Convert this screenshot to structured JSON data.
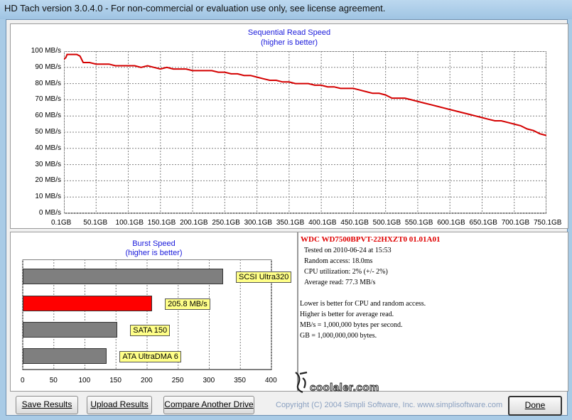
{
  "window": {
    "title": "HD Tach version 3.0.4.0  - For non-commercial or evaluation use only, see license agreement."
  },
  "colors": {
    "read_line": "#d40000",
    "grid": "#808080",
    "bar_highlight": "#ff0000",
    "bar_gray": "#7f7f7f",
    "chart_title": "#1a1adb"
  },
  "chart_data": [
    {
      "type": "line",
      "title": "Sequential Read Speed",
      "subtitle": "(higher is better)",
      "y_ticks": [
        "100 MB/s",
        "90 MB/s",
        "80 MB/s",
        "70 MB/s",
        "60 MB/s",
        "50 MB/s",
        "40 MB/s",
        "30 MB/s",
        "20 MB/s",
        "10 MB/s",
        "0 MB/s"
      ],
      "x_ticks": [
        "0.1GB",
        "50.1GB",
        "100.1GB",
        "150.1GB",
        "200.1GB",
        "250.1GB",
        "300.1GB",
        "350.1GB",
        "400.1GB",
        "450.1GB",
        "500.1GB",
        "550.1GB",
        "600.1GB",
        "650.1GB",
        "700.1GB",
        "750.1GB"
      ],
      "xlim": [
        0.1,
        750.1
      ],
      "ylim": [
        0,
        100
      ],
      "grid": true,
      "series": [
        {
          "x": [
            0.1,
            3,
            5,
            10,
            20,
            25,
            30,
            40,
            50,
            60,
            70,
            80,
            90,
            100,
            110,
            120,
            130,
            140,
            150,
            160,
            170,
            180,
            190,
            200,
            210,
            220,
            230,
            240,
            250,
            260,
            270,
            280,
            290,
            300,
            310,
            320,
            330,
            340,
            350,
            360,
            370,
            380,
            390,
            400,
            410,
            420,
            430,
            440,
            450,
            460,
            470,
            480,
            490,
            500,
            510,
            520,
            530,
            540,
            550,
            560,
            570,
            580,
            590,
            600,
            610,
            620,
            630,
            640,
            650,
            660,
            670,
            680,
            690,
            700,
            710,
            720,
            730,
            740,
            750.1
          ],
          "y": [
            95,
            96,
            98,
            98,
            98,
            97,
            93,
            93,
            92,
            92,
            92,
            91,
            91,
            91,
            91,
            90,
            91,
            90,
            89,
            90,
            89,
            89,
            89,
            88,
            88,
            88,
            88,
            87,
            87,
            86,
            86,
            85,
            85,
            84,
            83,
            82,
            82,
            81,
            81,
            80,
            80,
            80,
            79,
            79,
            78,
            78,
            77,
            77,
            77,
            76,
            75,
            74,
            74,
            73,
            71,
            71,
            71,
            70,
            69,
            68,
            67,
            66,
            65,
            64,
            63,
            62,
            61,
            60,
            59,
            58,
            57,
            57,
            56,
            55,
            54,
            52,
            51,
            49,
            48
          ]
        }
      ]
    },
    {
      "type": "bar",
      "title": "Burst Speed",
      "subtitle": "(higher is better)",
      "categories": [
        "SCSI Ultra320",
        "205.8 MB/s",
        "SATA 150",
        "ATA UltraDMA 6"
      ],
      "values": [
        320,
        205.8,
        150,
        133
      ],
      "highlight_index": 1,
      "x_ticks": [
        "0",
        "50",
        "100",
        "150",
        "200",
        "250",
        "300",
        "350",
        "400"
      ],
      "xlim": [
        0,
        400
      ]
    }
  ],
  "info": {
    "drive": "WDC  WD7500BPVT-22HXZT0 01.01A01",
    "tested": "Tested on 2010-06-24 at 15:53",
    "random_access": "Random access: 18.0ms",
    "cpu": "CPU utilization: 2% (+/- 2%)",
    "avg_read": "Average read: 77.3 MB/s",
    "note1": "Lower is better for CPU and random access.",
    "note2": "Higher is better for average read.",
    "note3": "MB/s = 1,000,000 bytes per second.",
    "note4": "GB = 1,000,000,000 bytes."
  },
  "watermark": "coolaler.com",
  "buttons": {
    "save": "Save Results",
    "upload": "Upload Results",
    "compare": "Compare Another Drive",
    "done": "Done"
  },
  "copyright": "Copyright (C) 2004 Simpli Software, Inc. www.simplisoftware.com"
}
